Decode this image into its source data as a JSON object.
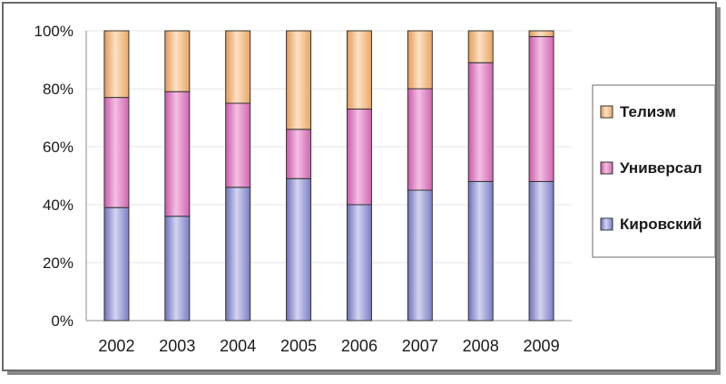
{
  "chart_data": {
    "type": "bar",
    "stacked": true,
    "percent": true,
    "categories": [
      "2002",
      "2003",
      "2004",
      "2005",
      "2006",
      "2007",
      "2008",
      "2009"
    ],
    "series": [
      {
        "name": "Кировский",
        "values": [
          39,
          36,
          46,
          49,
          40,
          45,
          48,
          48
        ],
        "color": "#9a9cd6"
      },
      {
        "name": "Универсал",
        "values": [
          38,
          43,
          29,
          17,
          33,
          35,
          41,
          50
        ],
        "color": "#e482c6"
      },
      {
        "name": "Телиэм",
        "values": [
          23,
          21,
          25,
          34,
          27,
          20,
          11,
          2
        ],
        "color": "#f6c08e"
      }
    ],
    "y_ticks": [
      "0%",
      "20%",
      "40%",
      "60%",
      "80%",
      "100%"
    ],
    "ylim": [
      0,
      100
    ],
    "grid": true,
    "legend_position": "right"
  }
}
